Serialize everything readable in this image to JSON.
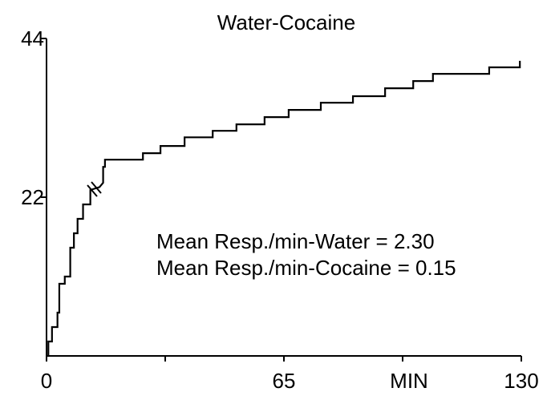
{
  "chart_data": {
    "type": "line",
    "title": "Water-Cocaine",
    "x_label": "MIN",
    "annotations": [
      "Mean Resp./min-Water = 2.30",
      "Mean Resp./min-Cocaine = 0.15"
    ],
    "x": [
      0,
      0.5,
      0.5,
      1.5,
      1.5,
      3,
      3,
      3.5,
      3.5,
      5,
      5,
      6.5,
      6.5,
      7.5,
      7.5,
      8.5,
      8.5,
      10,
      10,
      12,
      12,
      14.5,
      15.5,
      15.5,
      16,
      16,
      26.4,
      26.4,
      31.2,
      31.2,
      37.8,
      37.8,
      45.5,
      45.5,
      52,
      52,
      59.7,
      59.7,
      66.3,
      66.3,
      75.1,
      75.1,
      83.9,
      83.9,
      92.7,
      92.7,
      100.4,
      100.4,
      105.8,
      105.8,
      121.2,
      121.2,
      129.6,
      129.6
    ],
    "series": [
      {
        "color": "#000000",
        "values": [
          0,
          0,
          2,
          2,
          4,
          4,
          6,
          6,
          10,
          10,
          11,
          11,
          15,
          15,
          17,
          17,
          19,
          19,
          21,
          21,
          23,
          23.4,
          24,
          26.2,
          26.2,
          27.2,
          27.2,
          28.1,
          28.1,
          29.1,
          29.1,
          30.3,
          30.3,
          31.2,
          31.2,
          32.1,
          32.1,
          33.1,
          33.1,
          34.1,
          34.1,
          35.1,
          35.1,
          36,
          36,
          37.1,
          37.1,
          38.1,
          38.1,
          39.1,
          39.1,
          40,
          40,
          40.9
        ]
      }
    ],
    "xlim": [
      0,
      130
    ],
    "xticks": [
      0,
      65,
      130
    ],
    "xminorticks": [
      32.5,
      97.5
    ],
    "ylim": [
      0,
      44
    ],
    "yticks": [
      22,
      44
    ]
  }
}
